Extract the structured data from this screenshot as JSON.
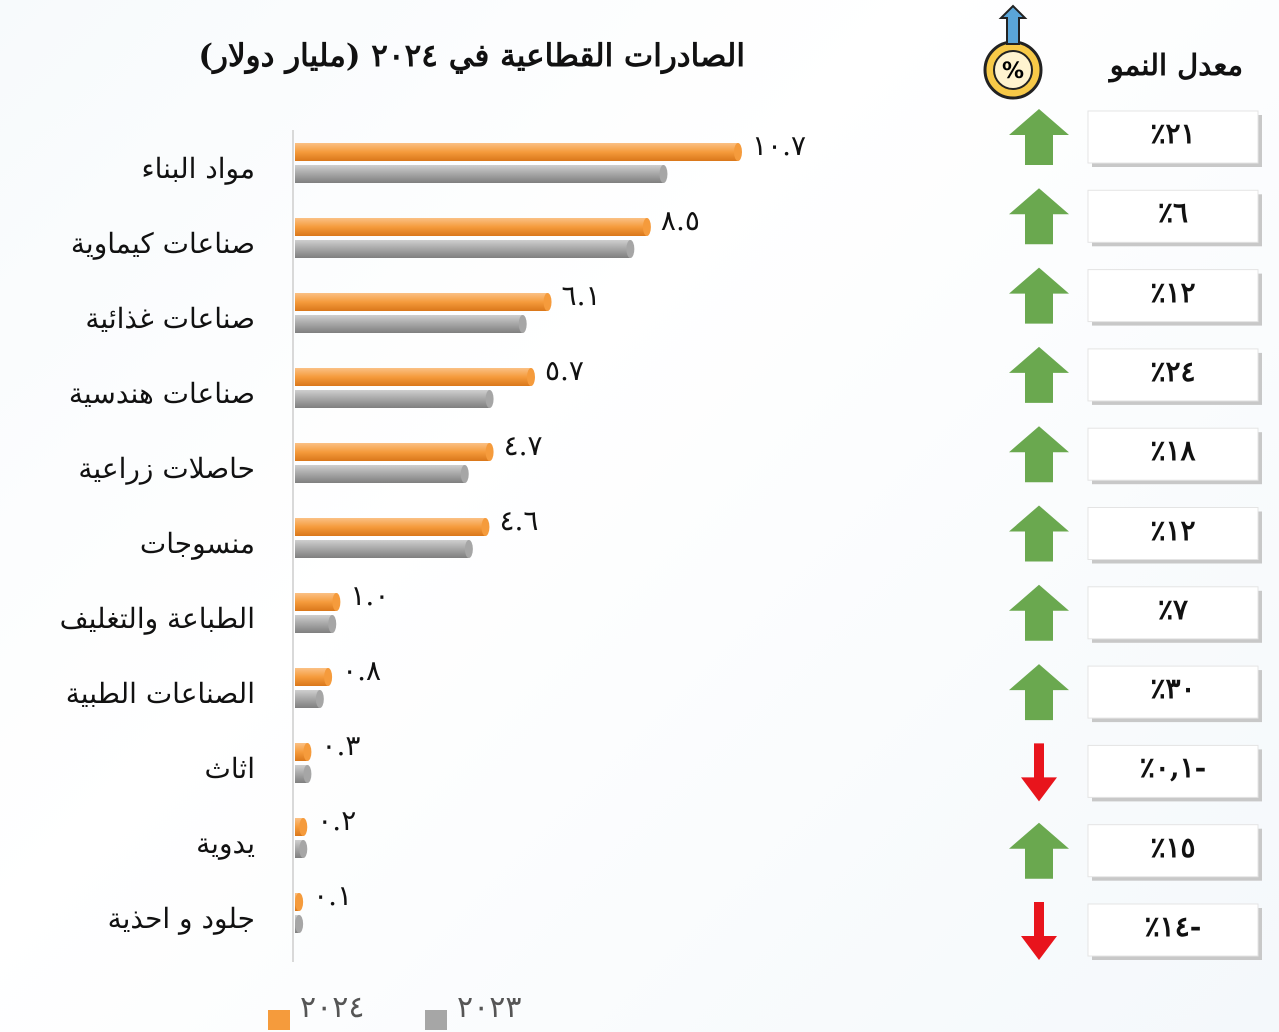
{
  "chart_data": {
    "type": "bar",
    "title": "الصادرات القطاعية في ٢٠٢٤ (مليار دولار)",
    "categories": [
      "مواد البناء",
      "صناعات كيماوية",
      "صناعات غذائية",
      "صناعات هندسية",
      "حاصلات زراعية",
      "منسوجات",
      "الطباعة والتغليف",
      "الصناعات الطبية",
      "اثاث",
      "يدوية",
      "جلود و احذية"
    ],
    "series": [
      {
        "name": "٢٠٢٤",
        "color": "#f59b3c",
        "values": [
          10.7,
          8.5,
          6.1,
          5.7,
          4.7,
          4.6,
          1.0,
          0.8,
          0.3,
          0.2,
          0.1
        ],
        "value_labels": [
          "١٠.٧",
          "٨.٥",
          "٦.١",
          "٥.٧",
          "٤.٧",
          "٤.٦",
          "١.٠",
          "٠.٨",
          "٠.٣",
          "٠.٢",
          "٠.١"
        ]
      },
      {
        "name": "٢٠٢٣",
        "color": "#a6a6a6",
        "values": [
          8.9,
          8.1,
          5.5,
          4.7,
          4.1,
          4.2,
          0.9,
          0.6,
          0.3,
          0.2,
          0.1
        ]
      }
    ],
    "xlim": [
      0,
      10.7
    ],
    "growth_title": "معدل النمو",
    "growth_values": [
      21,
      6,
      12,
      24,
      18,
      12,
      7,
      30,
      -0.1,
      15,
      -14
    ],
    "growth_labels": [
      "٪٢١",
      "٪٦",
      "٪١٢",
      "٪٢٤",
      "٪١٨",
      "٪١٢",
      "٪٧",
      "٪٣٠",
      "٪٠,١-",
      "٪١٥",
      "٪١٤-"
    ],
    "growth_colors": {
      "up": "#6aa84f",
      "down": "#e8141c"
    }
  }
}
